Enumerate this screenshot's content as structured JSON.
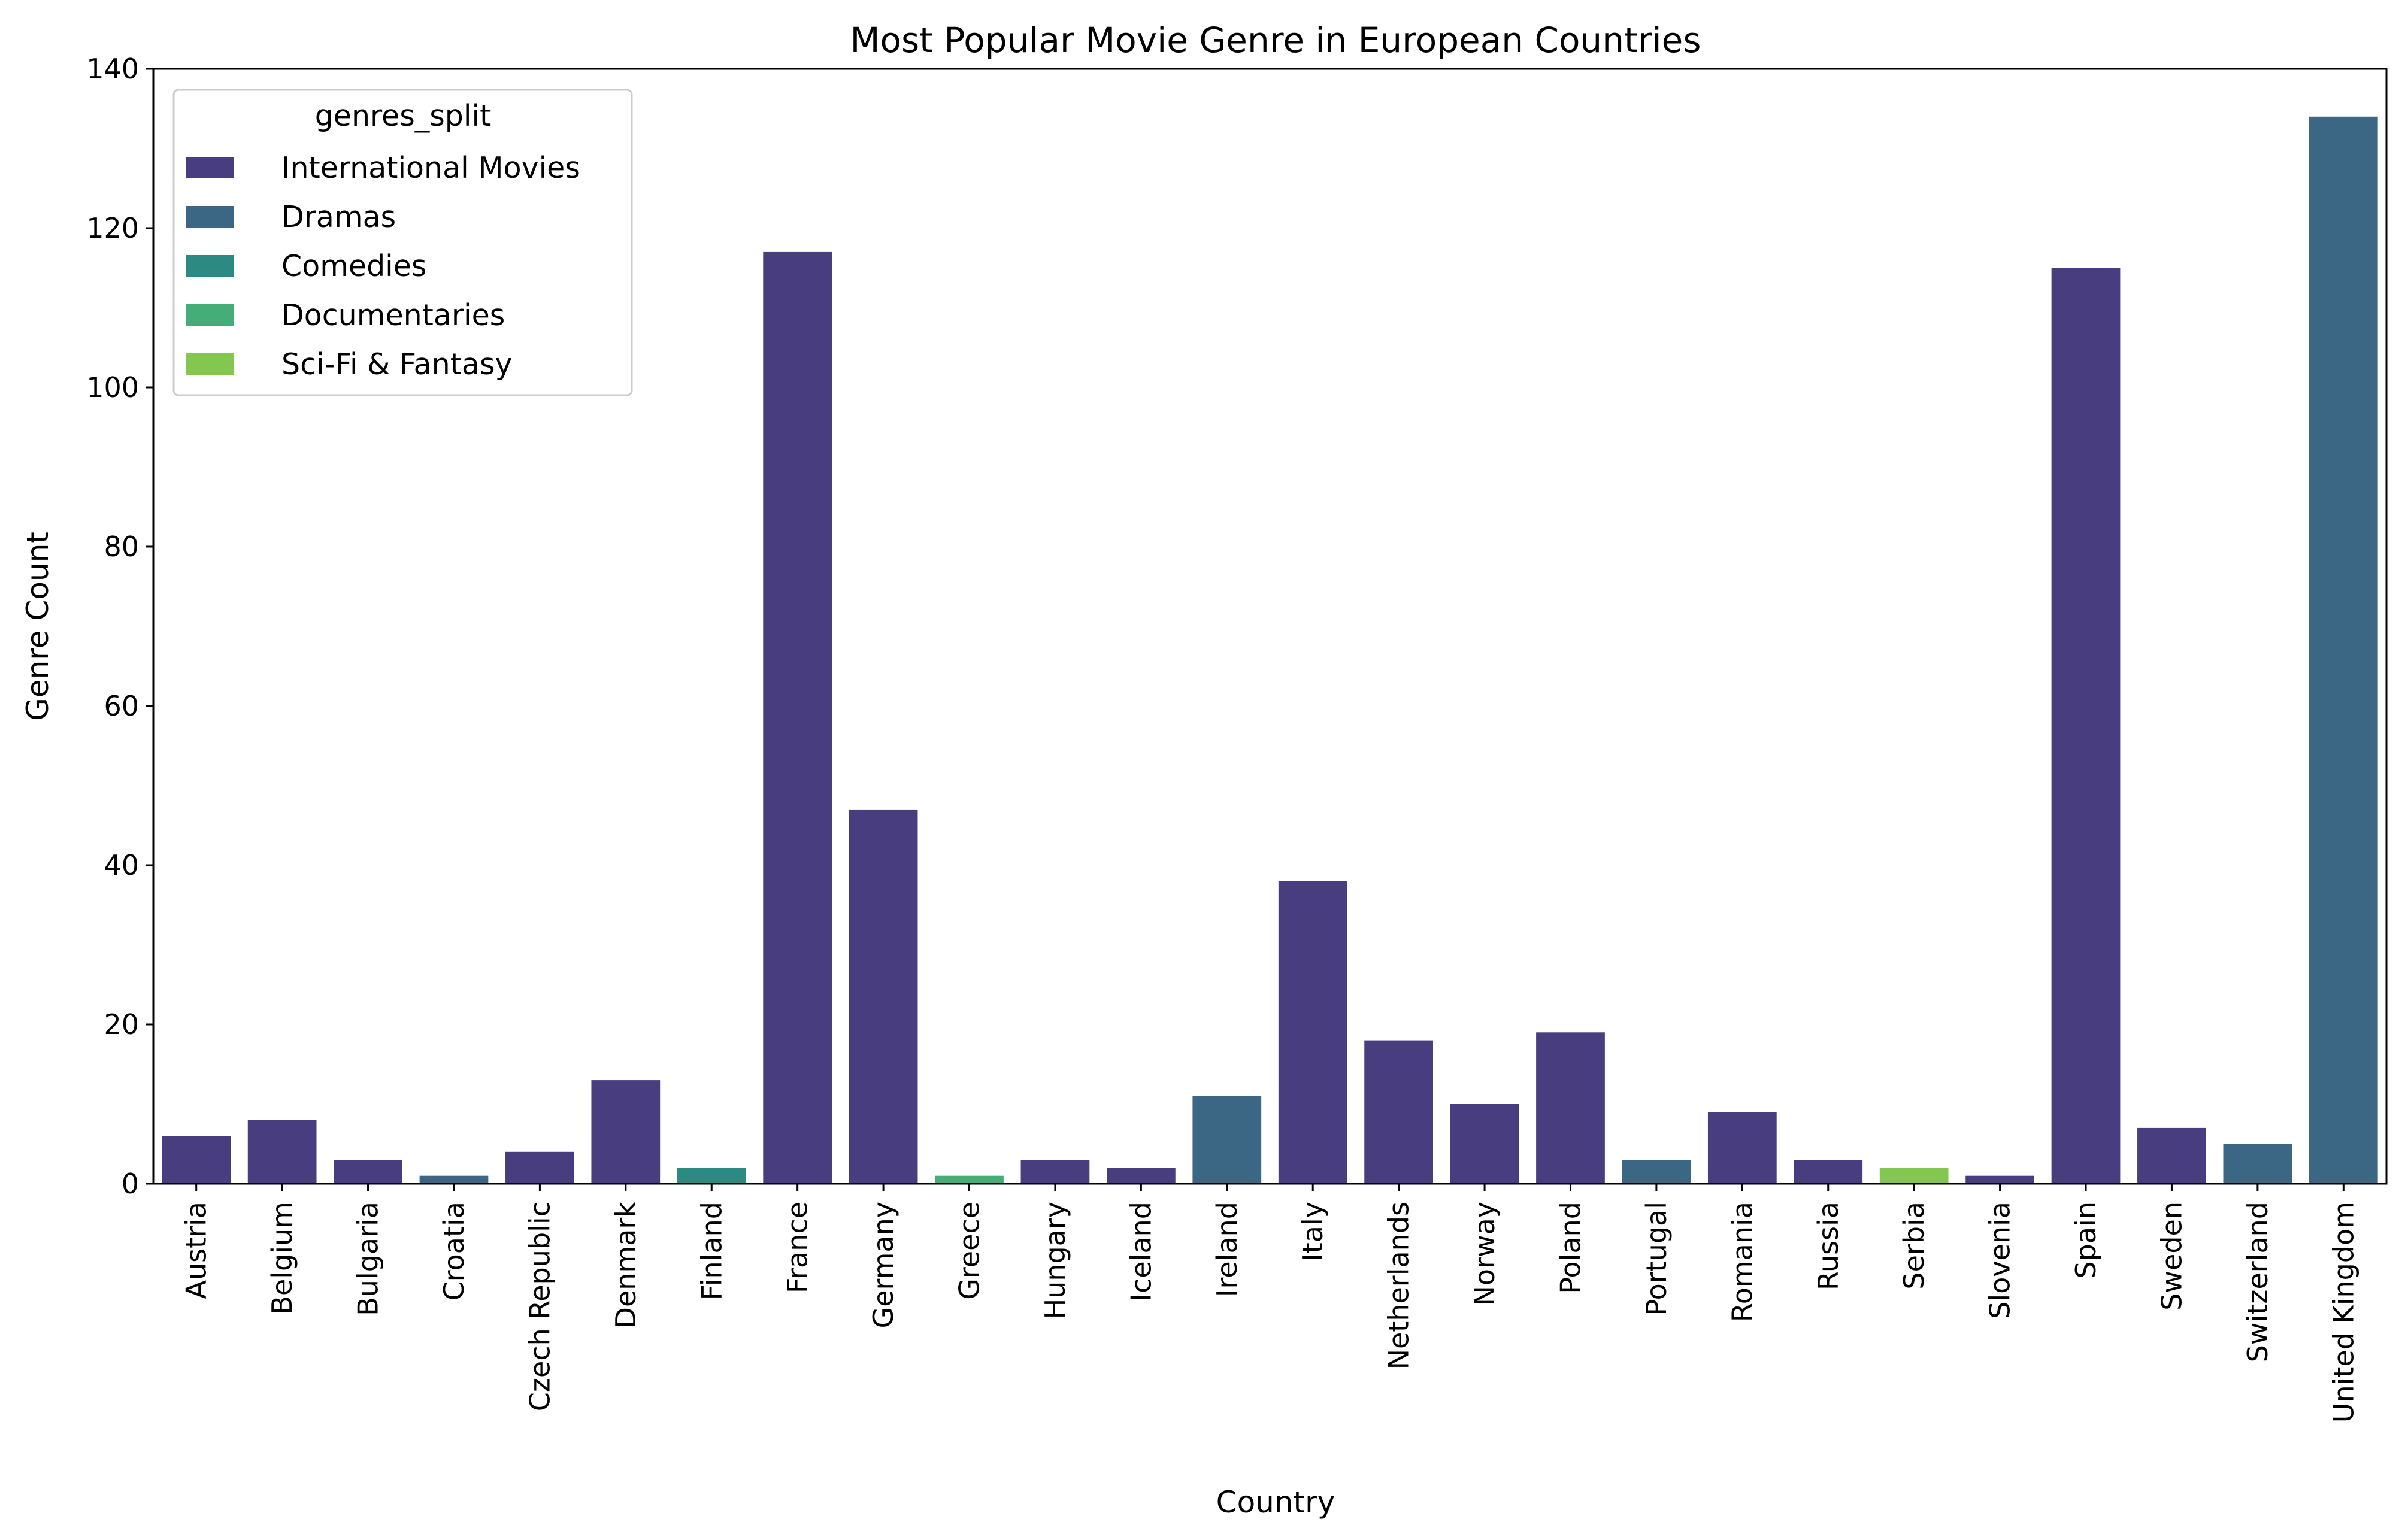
{
  "chart_data": {
    "type": "bar",
    "title": "Most Popular Movie Genre in European Countries",
    "xlabel": "Country",
    "ylabel": "Genre Count",
    "ylim": [
      0,
      140
    ],
    "yticks": [
      0,
      20,
      40,
      60,
      80,
      100,
      120,
      140
    ],
    "grid": false,
    "legend": {
      "title": "genres_split",
      "placement": "top-left",
      "entries": [
        {
          "label": "International Movies",
          "color": "#483d7f"
        },
        {
          "label": "Dramas",
          "color": "#3b6684"
        },
        {
          "label": "Comedies",
          "color": "#2d8a83"
        },
        {
          "label": "Documentaries",
          "color": "#45ad78"
        },
        {
          "label": "Sci-Fi & Fantasy",
          "color": "#84c750"
        }
      ]
    },
    "categories": [
      "Austria",
      "Belgium",
      "Bulgaria",
      "Croatia",
      "Czech Republic",
      "Denmark",
      "Finland",
      "France",
      "Germany",
      "Greece",
      "Hungary",
      "Iceland",
      "Ireland",
      "Italy",
      "Netherlands",
      "Norway",
      "Poland",
      "Portugal",
      "Romania",
      "Russia",
      "Serbia",
      "Slovenia",
      "Spain",
      "Sweden",
      "Switzerland",
      "United Kingdom"
    ],
    "values": [
      6,
      8,
      3,
      1,
      4,
      13,
      2,
      117,
      47,
      1,
      3,
      2,
      11,
      38,
      18,
      10,
      19,
      3,
      9,
      3,
      2,
      1,
      115,
      7,
      5,
      134
    ],
    "genres": [
      "International Movies",
      "International Movies",
      "International Movies",
      "Dramas",
      "International Movies",
      "International Movies",
      "Comedies",
      "International Movies",
      "International Movies",
      "Documentaries",
      "International Movies",
      "International Movies",
      "Dramas",
      "International Movies",
      "International Movies",
      "International Movies",
      "International Movies",
      "Dramas",
      "International Movies",
      "International Movies",
      "Sci-Fi & Fantasy",
      "International Movies",
      "International Movies",
      "International Movies",
      "Dramas",
      "Dramas"
    ]
  }
}
